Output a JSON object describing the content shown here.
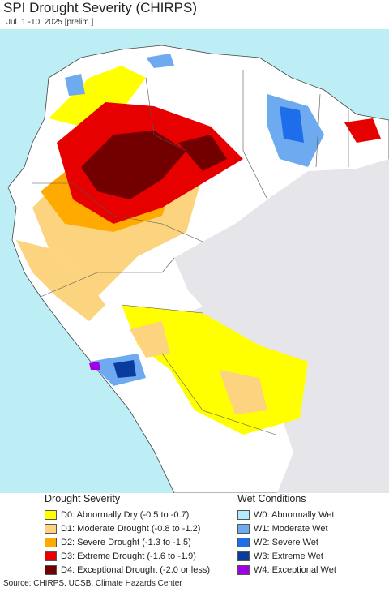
{
  "title": "SPI Drought Severity (CHIRPS)",
  "subtitle": "Jul. 1 -10, 2025 [prelim.]",
  "drought": {
    "title": "Drought Severity",
    "items": [
      {
        "label": "D0: Abnormally Dry (-0.5 to -0.7)",
        "color": "#ffff00"
      },
      {
        "label": "D1: Moderate Drought (-0.8 to -1.2)",
        "color": "#fcd37f"
      },
      {
        "label": "D2: Severe Drought (-1.3 to -1.5)",
        "color": "#ffaa00"
      },
      {
        "label": "D3: Extreme Drought (-1.6 to -1.9)",
        "color": "#e60000"
      },
      {
        "label": "D4: Exceptional Drought (-2.0 or less)",
        "color": "#730000"
      }
    ]
  },
  "wet": {
    "title": "Wet Conditions",
    "items": [
      {
        "label": "W0: Abnormally Wet",
        "color": "#b4ebfa"
      },
      {
        "label": "W1: Moderate Wet",
        "color": "#6eaaf0"
      },
      {
        "label": "W2: Severe Wet",
        "color": "#1e6eeb"
      },
      {
        "label": "W3: Extreme Wet",
        "color": "#0a3ca0"
      },
      {
        "label": "W4: Exceptional Wet",
        "color": "#a000e6"
      }
    ]
  },
  "source": "Source: CHIRPS, UCSB, Climate Hazards Center"
}
